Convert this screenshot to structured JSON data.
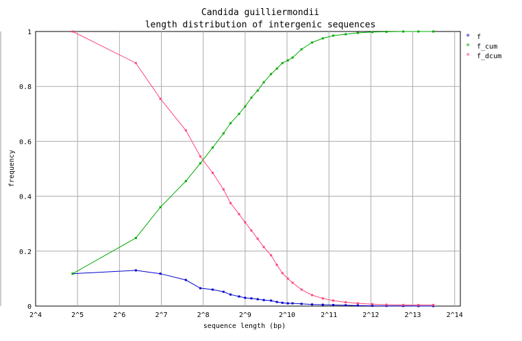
{
  "chart_data": {
    "type": "line",
    "title": "Candida guilliermondii",
    "subtitle": "length distribution of intergenic sequences",
    "xlabel": "sequence length (bp)",
    "ylabel": "frequency",
    "x_scale": "log2",
    "xlim": [
      16,
      18000
    ],
    "ylim": [
      0,
      1
    ],
    "x_ticks": [
      {
        "value": 16,
        "label": "2^4"
      },
      {
        "value": 32,
        "label": "2^5"
      },
      {
        "value": 64,
        "label": "2^6"
      },
      {
        "value": 128,
        "label": "2^7"
      },
      {
        "value": 256,
        "label": "2^8"
      },
      {
        "value": 512,
        "label": "2^9"
      },
      {
        "value": 1024,
        "label": "2^10"
      },
      {
        "value": 2048,
        "label": "2^11"
      },
      {
        "value": 4096,
        "label": "2^12"
      },
      {
        "value": 8192,
        "label": "2^13"
      },
      {
        "value": 16384,
        "label": "2^14"
      }
    ],
    "y_ticks": [
      {
        "value": 0,
        "label": "0"
      },
      {
        "value": 0.2,
        "label": "0.2"
      },
      {
        "value": 0.4,
        "label": "0.4"
      },
      {
        "value": 0.6,
        "label": "0.6"
      },
      {
        "value": 0.8,
        "label": "0.8"
      },
      {
        "value": 1,
        "label": "1"
      }
    ],
    "grid": true,
    "legend_position": "top-right",
    "x": [
      29.5,
      84,
      126,
      192,
      244,
      299,
      358,
      402,
      463,
      512,
      568,
      630,
      697,
      786,
      866,
      948,
      1038,
      1122,
      1300,
      1550,
      1850,
      2200,
      2700,
      3300,
      4200,
      5300,
      7000,
      9000,
      11500
    ],
    "series": [
      {
        "name": "f",
        "color": "#0000cc",
        "values": [
          0.118,
          0.13,
          0.118,
          0.095,
          0.065,
          0.06,
          0.052,
          0.042,
          0.035,
          0.03,
          0.028,
          0.025,
          0.022,
          0.02,
          0.015,
          0.012,
          0.01,
          0.01,
          0.008,
          0.006,
          0.005,
          0.004,
          0.003,
          0.002,
          0.001,
          0.0008,
          0.0005,
          0.0003,
          0.0002
        ]
      },
      {
        "name": "f_cum",
        "color": "#00aa00",
        "values": [
          0.118,
          0.248,
          0.36,
          0.455,
          0.52,
          0.577,
          0.629,
          0.666,
          0.7,
          0.727,
          0.759,
          0.785,
          0.815,
          0.845,
          0.865,
          0.885,
          0.895,
          0.905,
          0.935,
          0.96,
          0.975,
          0.985,
          0.99,
          0.995,
          0.998,
          0.999,
          1.0,
          1.0,
          1.0
        ]
      },
      {
        "name": "f_dcum",
        "color": "#ff4477",
        "values": [
          1.0,
          0.885,
          0.755,
          0.64,
          0.545,
          0.485,
          0.425,
          0.375,
          0.335,
          0.305,
          0.275,
          0.245,
          0.215,
          0.185,
          0.15,
          0.12,
          0.1,
          0.085,
          0.06,
          0.04,
          0.028,
          0.02,
          0.014,
          0.01,
          0.007,
          0.005,
          0.004,
          0.004,
          0.004
        ]
      }
    ]
  }
}
